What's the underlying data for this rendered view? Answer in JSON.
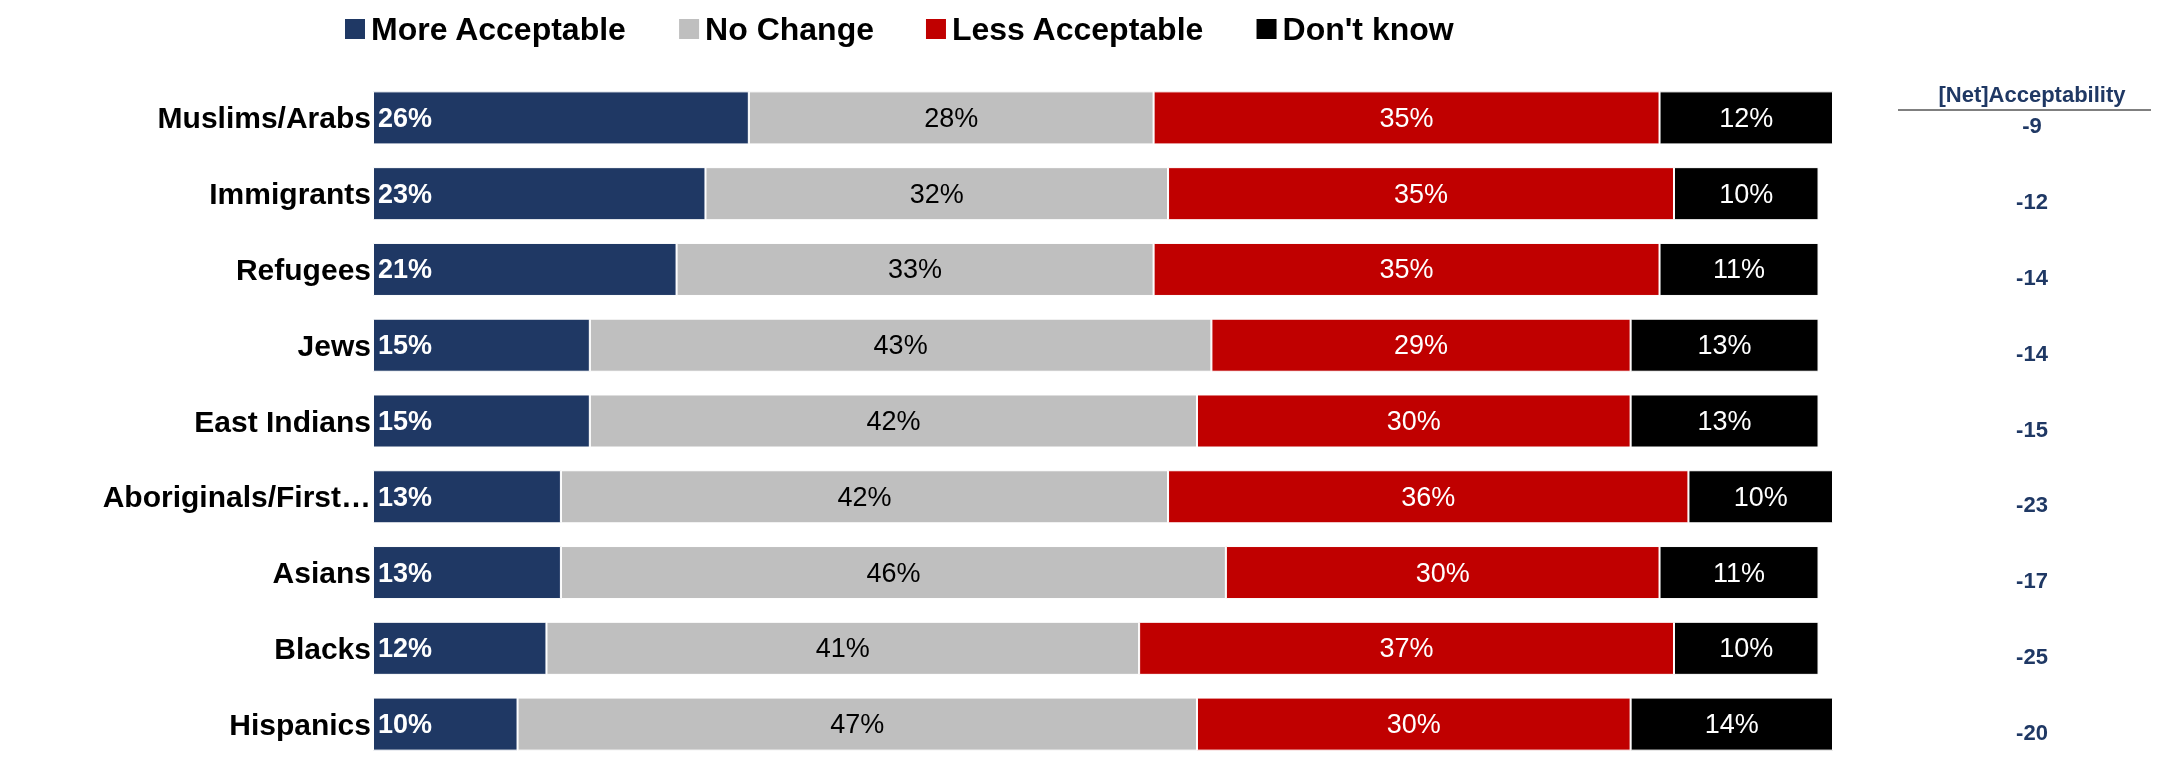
{
  "chart_data": {
    "type": "bar",
    "orientation": "horizontal",
    "stacked": true,
    "legend": "top",
    "categories": [
      "Muslims/Arabs",
      "Immigrants",
      "Refugees",
      "Jews",
      "East Indians",
      "Aboriginals/First…",
      "Asians",
      "Blacks",
      "Hispanics"
    ],
    "series": [
      {
        "name": "More Acceptable",
        "color": "#1f3864",
        "values": [
          26,
          23,
          21,
          15,
          15,
          13,
          13,
          12,
          10
        ],
        "value_labels": [
          "26%",
          "23%",
          "21%",
          "15%",
          "15%",
          "13%",
          "13%",
          "12%",
          "10%"
        ]
      },
      {
        "name": "No Change",
        "color": "#bfbfbf",
        "values": [
          28,
          32,
          33,
          43,
          42,
          42,
          46,
          41,
          47
        ],
        "value_labels": [
          "28%",
          "32%",
          "33%",
          "43%",
          "42%",
          "42%",
          "46%",
          "41%",
          "47%"
        ]
      },
      {
        "name": "Less Acceptable",
        "color": "#c00000",
        "values": [
          35,
          35,
          35,
          29,
          30,
          36,
          30,
          37,
          30
        ],
        "value_labels": [
          "35%",
          "35%",
          "35%",
          "29%",
          "30%",
          "36%",
          "30%",
          "37%",
          "30%"
        ]
      },
      {
        "name": "Don't know",
        "color": "#000000",
        "values": [
          12,
          10,
          11,
          13,
          13,
          10,
          11,
          10,
          14
        ],
        "value_labels": [
          "12%",
          "10%",
          "11%",
          "13%",
          "13%",
          "10%",
          "11%",
          "10%",
          "14%"
        ]
      }
    ],
    "annotations": [
      "[Net]Acceptability",
      "-9",
      "-12",
      "-14",
      "-14",
      "-15",
      "-23",
      "-17",
      "-25",
      "-20"
    ]
  }
}
